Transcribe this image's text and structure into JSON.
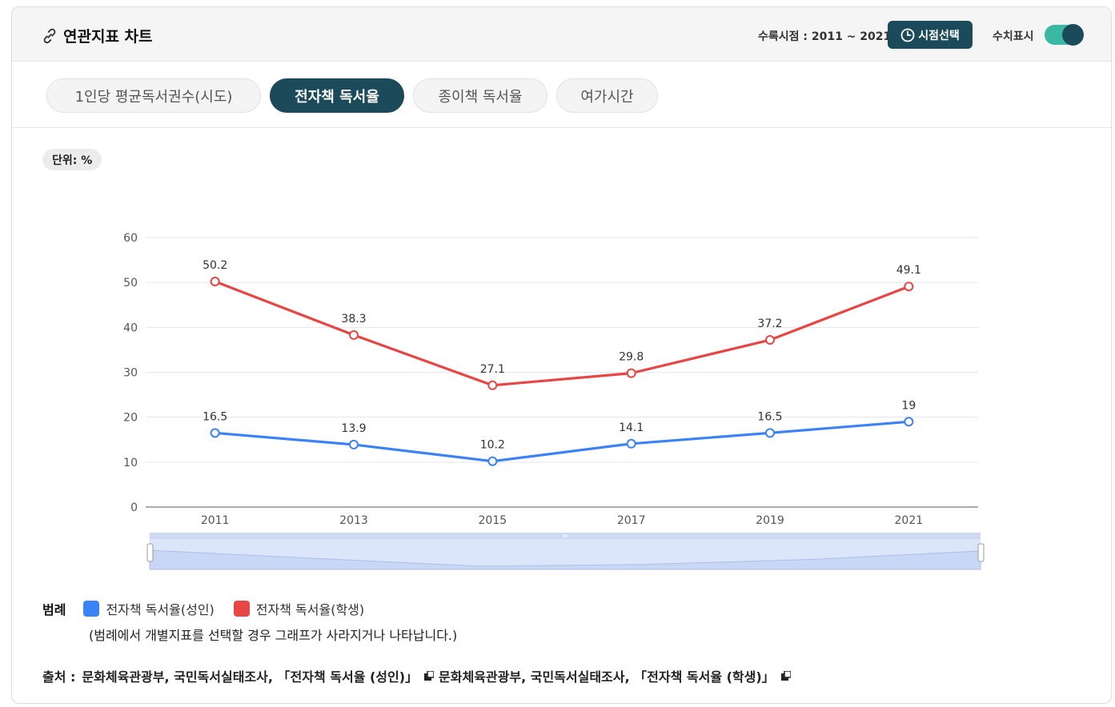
{
  "header": {
    "title": "연관지표 차트",
    "period_text": "수록시점 : 2011 ~ 2021",
    "period_button": "시점선택",
    "toggle_label": "수치표시",
    "toggle_on": true
  },
  "tabs": [
    {
      "label": "1인당 평균독서권수(시도)",
      "active": false
    },
    {
      "label": "전자책 독서율",
      "active": true
    },
    {
      "label": "종이책 독서율",
      "active": false
    },
    {
      "label": "여가시간",
      "active": false
    }
  ],
  "unit_label": "단위: %",
  "colors": {
    "accent": "#1b4a5a",
    "toggle": "#3ab8a4",
    "series_adult": "#3b82f6",
    "series_student": "#e84545"
  },
  "chart_data": {
    "type": "line",
    "title": "",
    "xlabel": "",
    "ylabel": "",
    "x": [
      "2011",
      "2013",
      "2015",
      "2017",
      "2019",
      "2021"
    ],
    "y_ticks": [
      0,
      10,
      20,
      30,
      40,
      50,
      60
    ],
    "ylim": [
      0,
      60
    ],
    "grid": true,
    "show_values": true,
    "series": [
      {
        "name": "전자책 독서율(성인)",
        "color": "#3b82f6",
        "values": [
          16.5,
          13.9,
          10.2,
          14.1,
          16.5,
          19
        ]
      },
      {
        "name": "전자책 독서율(학생)",
        "color": "#e84545",
        "values": [
          50.2,
          38.3,
          27.1,
          29.8,
          37.2,
          49.1
        ]
      }
    ]
  },
  "legend": {
    "title": "범례",
    "note": "(범례에서 개별지표를 선택할 경우 그래프가 사라지거나 나타납니다.)"
  },
  "source": {
    "label": "출처 :",
    "items": [
      "문화체육관광부, 국민독서실태조사, 「전자책 독서율 (성인)」",
      "문화체육관광부, 국민독서실태조사, 「전자책 독서율 (학생)」"
    ]
  }
}
